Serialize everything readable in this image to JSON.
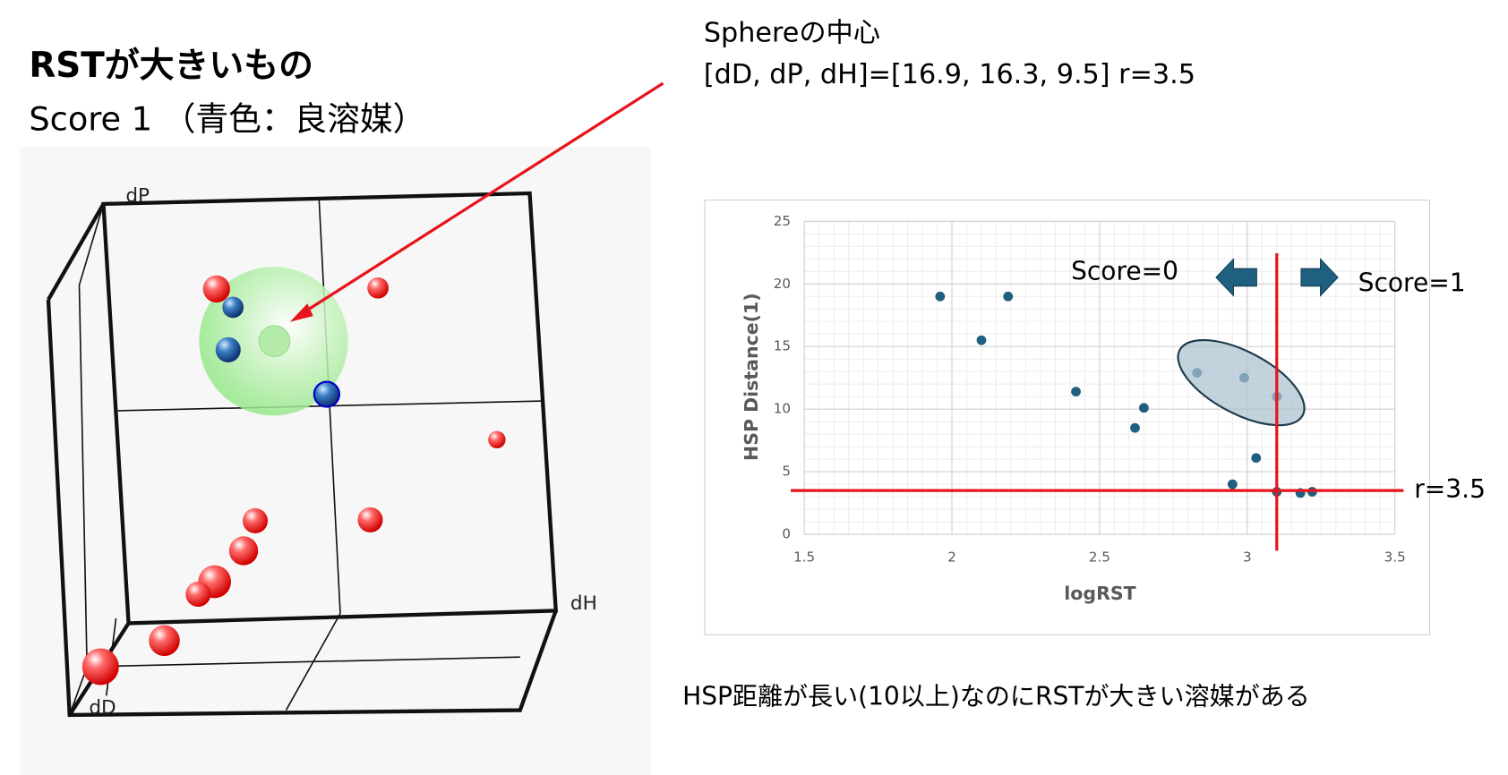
{
  "header": {
    "title": "RSTが大きいもの",
    "subtitle": "Score 1 （青色：良溶媒）"
  },
  "sphere_note": {
    "line1": "Sphereの中心",
    "line2": "[dD, dP, dH]=[16.9, 16.3, 9.5] r=3.5"
  },
  "plot3d": {
    "axes": [
      "dP",
      "dH",
      "dD"
    ]
  },
  "footer": "HSP距離が長い(10以上)なのにRSTが大きい溶媒がある",
  "chart_data": {
    "type": "scatter",
    "x_label": "logRST",
    "y_label": "HSP Distance(1)",
    "x": [
      1.96,
      2.1,
      2.19,
      2.42,
      2.62,
      2.65,
      2.83,
      2.95,
      2.99,
      3.03,
      3.1,
      3.1,
      3.18,
      3.22
    ],
    "values": [
      19,
      15.5,
      19,
      11.4,
      8.5,
      10.1,
      12.9,
      4,
      12.5,
      6.1,
      11,
      3.4,
      3.3,
      3.4
    ],
    "color": "#1f5f80",
    "xlim": [
      1.5,
      3.5
    ],
    "xticks": [
      1.5,
      2,
      2.5,
      3,
      3.5
    ],
    "ylim": [
      0,
      25
    ],
    "yticks": [
      0,
      5,
      10,
      15,
      20,
      25
    ],
    "grid": true,
    "thresholds": [
      {
        "axis": "x",
        "value": 3.1
      },
      {
        "axis": "y",
        "value": 3.5,
        "label": "r=3.5"
      }
    ],
    "annotations": [
      "Score=0",
      "Score=1"
    ]
  }
}
